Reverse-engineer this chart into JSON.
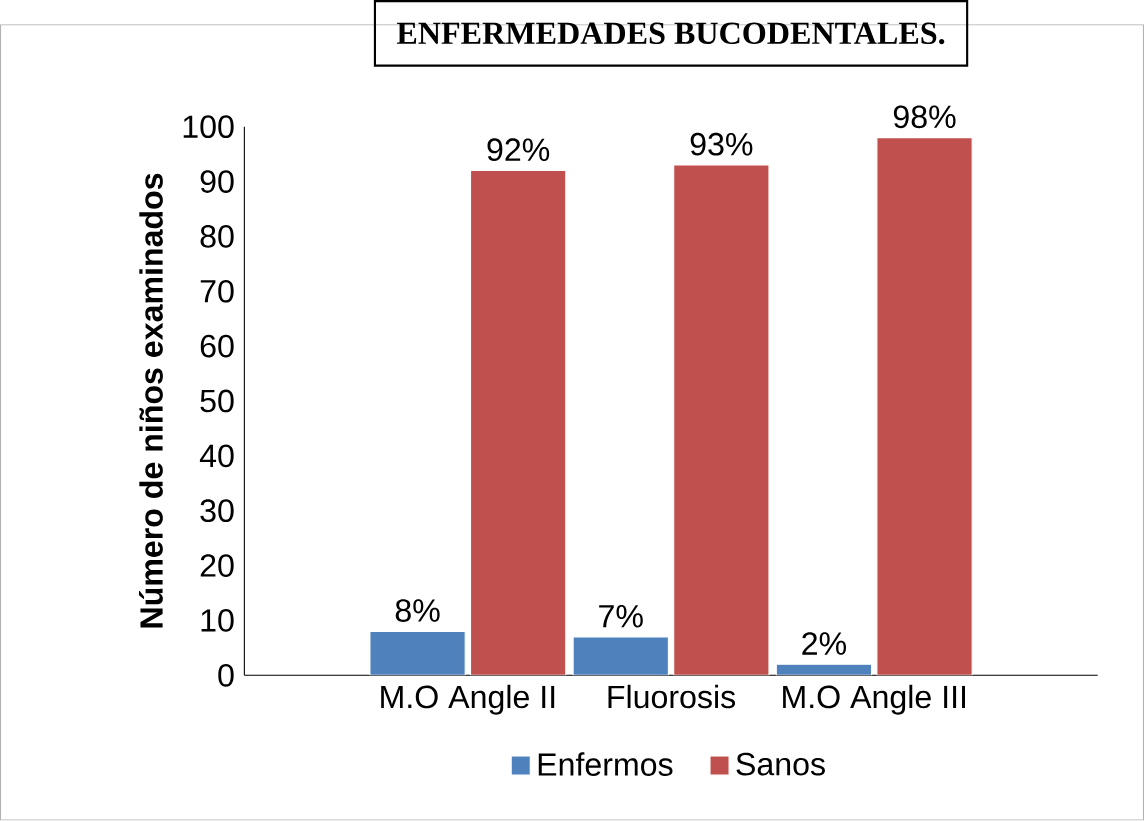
{
  "chart_data": {
    "type": "bar",
    "title": "ENFERMEDADES BUCODENTALES.",
    "ylabel": "Número de niños examinados",
    "categories": [
      "M.O Angle II",
      "Fluorosis",
      "M.O Angle III"
    ],
    "series": [
      {
        "name": "Enfermos",
        "color": "#4f81bd",
        "values": [
          8,
          7,
          2
        ],
        "value_labels": [
          "8%",
          "7%",
          "2%"
        ]
      },
      {
        "name": "Sanos",
        "color": "#c0504d",
        "values": [
          92,
          93,
          98
        ],
        "value_labels": [
          "92%",
          "93%",
          "98%"
        ]
      }
    ],
    "ylim": [
      0,
      100
    ],
    "yticks": [
      0,
      10,
      20,
      30,
      40,
      50,
      60,
      70,
      80,
      90,
      100
    ],
    "grid": false,
    "legend": "bottom"
  }
}
